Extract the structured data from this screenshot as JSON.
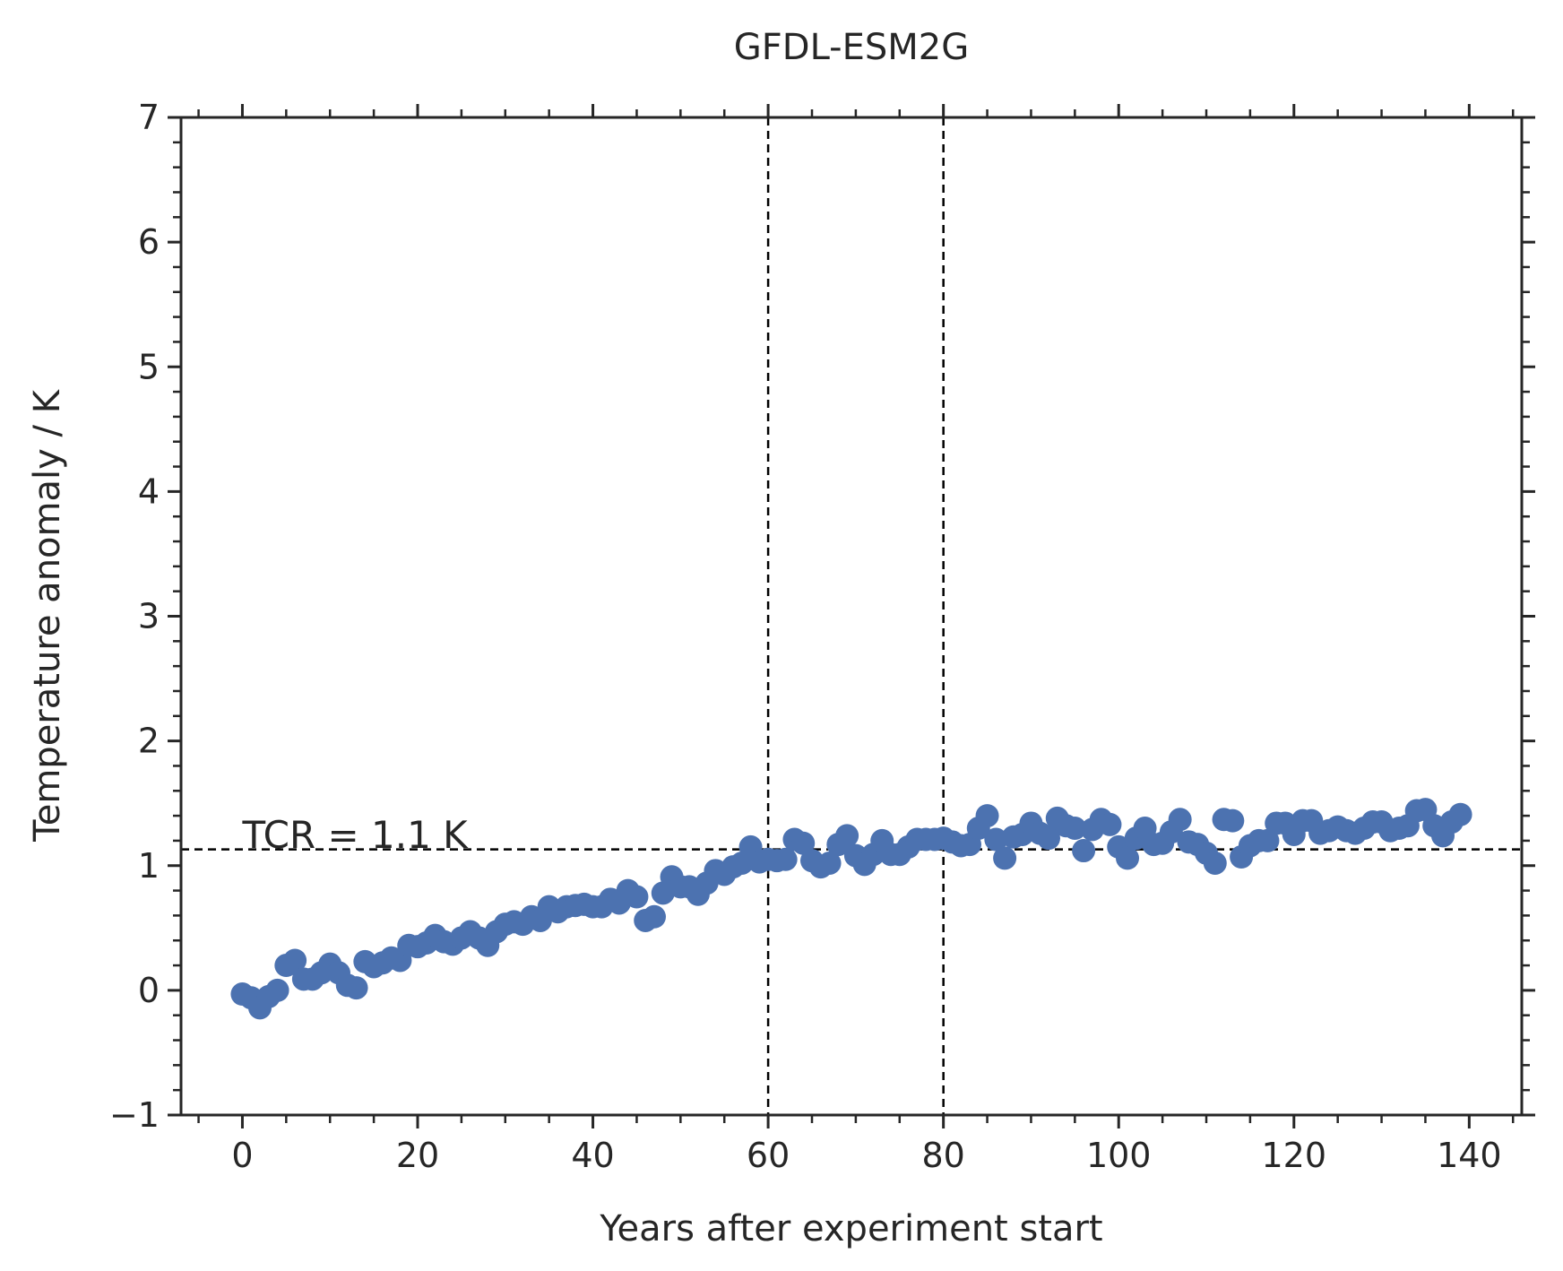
{
  "chart_data": {
    "type": "scatter",
    "title": "GFDL-ESM2G",
    "xlabel": "Years after experiment start",
    "ylabel": "Temperature anomaly / K",
    "xlim": [
      -7,
      146
    ],
    "ylim": [
      -1,
      7
    ],
    "xticks": [
      0,
      20,
      40,
      60,
      80,
      100,
      120,
      140
    ],
    "xtick_labels": [
      "0",
      "20",
      "40",
      "60",
      "80",
      "100",
      "120",
      "140"
    ],
    "yticks": [
      -1,
      0,
      1,
      2,
      3,
      4,
      5,
      6,
      7
    ],
    "ytick_labels": [
      "−1",
      "0",
      "1",
      "2",
      "3",
      "4",
      "5",
      "6",
      "7"
    ],
    "grid": false,
    "marker_color": "#4c72b0",
    "line_color": "#000000",
    "reference_lines": {
      "vertical_x": [
        60,
        80
      ],
      "horizontal_y": 1.13
    },
    "annotation": {
      "text": "TCR = 1.1 K",
      "x": 0,
      "y": 1.2
    },
    "x": [
      0,
      1,
      2,
      3,
      4,
      5,
      6,
      7,
      8,
      9,
      10,
      11,
      12,
      13,
      14,
      15,
      16,
      17,
      18,
      19,
      20,
      21,
      22,
      23,
      24,
      25,
      26,
      27,
      28,
      29,
      30,
      31,
      32,
      33,
      34,
      35,
      36,
      37,
      38,
      39,
      40,
      41,
      42,
      43,
      44,
      45,
      46,
      47,
      48,
      49,
      50,
      51,
      52,
      53,
      54,
      55,
      56,
      57,
      58,
      59,
      60,
      61,
      62,
      63,
      64,
      65,
      66,
      67,
      68,
      69,
      70,
      71,
      72,
      73,
      74,
      75,
      76,
      77,
      78,
      79,
      80,
      81,
      82,
      83,
      84,
      85,
      86,
      87,
      88,
      89,
      90,
      91,
      92,
      93,
      94,
      95,
      96,
      97,
      98,
      99,
      100,
      101,
      102,
      103,
      104,
      105,
      106,
      107,
      108,
      109,
      110,
      111,
      112,
      113,
      114,
      115,
      116,
      117,
      118,
      119,
      120,
      121,
      122,
      123,
      124,
      125,
      126,
      127,
      128,
      129,
      130,
      131,
      132,
      133,
      134,
      135,
      136,
      137,
      138,
      139
    ],
    "y": [
      -0.03,
      -0.06,
      -0.14,
      -0.05,
      0.0,
      0.2,
      0.24,
      0.09,
      0.09,
      0.14,
      0.21,
      0.14,
      0.04,
      0.02,
      0.23,
      0.19,
      0.22,
      0.26,
      0.24,
      0.36,
      0.35,
      0.38,
      0.44,
      0.39,
      0.37,
      0.42,
      0.47,
      0.42,
      0.36,
      0.47,
      0.53,
      0.55,
      0.53,
      0.59,
      0.56,
      0.67,
      0.63,
      0.67,
      0.68,
      0.69,
      0.67,
      0.67,
      0.73,
      0.7,
      0.8,
      0.75,
      0.56,
      0.59,
      0.78,
      0.91,
      0.83,
      0.83,
      0.77,
      0.86,
      0.96,
      0.93,
      0.99,
      1.02,
      1.15,
      1.03,
      1.05,
      1.04,
      1.05,
      1.21,
      1.18,
      1.04,
      0.99,
      1.02,
      1.17,
      1.24,
      1.08,
      1.01,
      1.09,
      1.2,
      1.09,
      1.09,
      1.15,
      1.21,
      1.21,
      1.21,
      1.22,
      1.19,
      1.16,
      1.17,
      1.3,
      1.4,
      1.21,
      1.06,
      1.23,
      1.25,
      1.34,
      1.26,
      1.22,
      1.38,
      1.32,
      1.3,
      1.12,
      1.29,
      1.37,
      1.33,
      1.15,
      1.06,
      1.22,
      1.3,
      1.17,
      1.18,
      1.27,
      1.37,
      1.19,
      1.17,
      1.1,
      1.02,
      1.37,
      1.36,
      1.07,
      1.16,
      1.2,
      1.2,
      1.34,
      1.34,
      1.25,
      1.36,
      1.36,
      1.26,
      1.28,
      1.31,
      1.28,
      1.26,
      1.3,
      1.35,
      1.35,
      1.28,
      1.3,
      1.32,
      1.44,
      1.45,
      1.32,
      1.24,
      1.35,
      1.41
    ]
  }
}
